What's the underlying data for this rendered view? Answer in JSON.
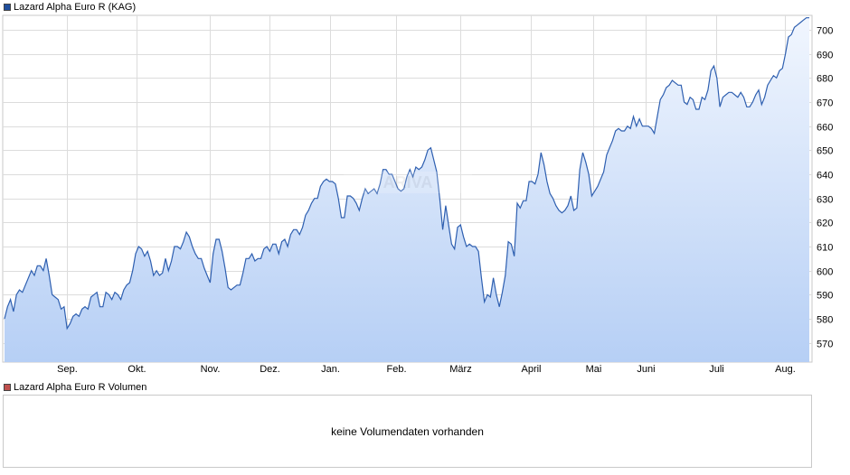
{
  "price_legend": {
    "label": "Lazard Alpha Euro R (KAG)",
    "color": "#1f4e9c"
  },
  "volume_legend": {
    "label": "Lazard Alpha Euro R Volumen",
    "color": "#c0504d"
  },
  "volume_message": "keine Volumendaten vorhanden",
  "colors": {
    "line": "#2e5fb0",
    "fill_top": "#f1f6fe",
    "fill_bottom": "#b6cff5",
    "grid": "#dcdcdc"
  },
  "chart_data": {
    "type": "area",
    "title": "",
    "xlabel": "",
    "ylabel": "",
    "ylim": [
      562,
      706
    ],
    "y_ticks": [
      570,
      580,
      590,
      600,
      610,
      620,
      630,
      640,
      650,
      660,
      670,
      680,
      690,
      700
    ],
    "x_tick_labels": [
      "Sep.",
      "Okt.",
      "Nov.",
      "Dez.",
      "Jan.",
      "Feb.",
      "März",
      "April",
      "Mai",
      "Juni",
      "Juli",
      "Aug."
    ],
    "grid": true,
    "series": [
      {
        "name": "Lazard Alpha Euro R (KAG)",
        "values": [
          580,
          585,
          588,
          583,
          590,
          592,
          591,
          594,
          597,
          600,
          598,
          602,
          602,
          600,
          605,
          598,
          590,
          589,
          588,
          584,
          585,
          576,
          578,
          581,
          582,
          581,
          584,
          585,
          584,
          589,
          590,
          591,
          585,
          585,
          591,
          590,
          588,
          591,
          590,
          588,
          592,
          594,
          595,
          600,
          607,
          610,
          609,
          606,
          608,
          604,
          598,
          600,
          598,
          599,
          605,
          600,
          604,
          610,
          610,
          609,
          612,
          616,
          614,
          610,
          607,
          605,
          605,
          601,
          598,
          595,
          607,
          613,
          613,
          608,
          601,
          593,
          592,
          593,
          594,
          594,
          599,
          605,
          605,
          607,
          604,
          605,
          605,
          609,
          610,
          608,
          611,
          611,
          607,
          612,
          613,
          610,
          615,
          617,
          617,
          615,
          618,
          623,
          625,
          628,
          630,
          630,
          635,
          637,
          638,
          637,
          637,
          636,
          630,
          622,
          622,
          631,
          631,
          630,
          628,
          625,
          630,
          634,
          632,
          633,
          634,
          632,
          636,
          642,
          642,
          640,
          640,
          637,
          634,
          633,
          634,
          639,
          642,
          639,
          643,
          642,
          643,
          646,
          650,
          651,
          646,
          641,
          630,
          617,
          627,
          619,
          611,
          609,
          618,
          619,
          614,
          610,
          611,
          610,
          610,
          608,
          597,
          587,
          590,
          589,
          597,
          590,
          585,
          591,
          598,
          612,
          611,
          606,
          628,
          626,
          629,
          629,
          637,
          637,
          636,
          640,
          649,
          644,
          637,
          632,
          630,
          627,
          625,
          624,
          625,
          627,
          631,
          625,
          626,
          642,
          649,
          645,
          640,
          631,
          633,
          635,
          638,
          641,
          648,
          651,
          654,
          658,
          659,
          658,
          658,
          660,
          659,
          664,
          660,
          663,
          660,
          660,
          660,
          659,
          657,
          664,
          671,
          673,
          676,
          677,
          679,
          678,
          677,
          677,
          670,
          669,
          672,
          671,
          667,
          667,
          672,
          671,
          675,
          683,
          685,
          680,
          668,
          672,
          673,
          674,
          674,
          673,
          672,
          674,
          672,
          668,
          668,
          670,
          673,
          675,
          669,
          672,
          677,
          679,
          681,
          680,
          683,
          684,
          690,
          697,
          698,
          701,
          702,
          703,
          704,
          705,
          705
        ]
      }
    ],
    "volume": {
      "name": "Lazard Alpha Euro R Volumen",
      "values": []
    }
  }
}
